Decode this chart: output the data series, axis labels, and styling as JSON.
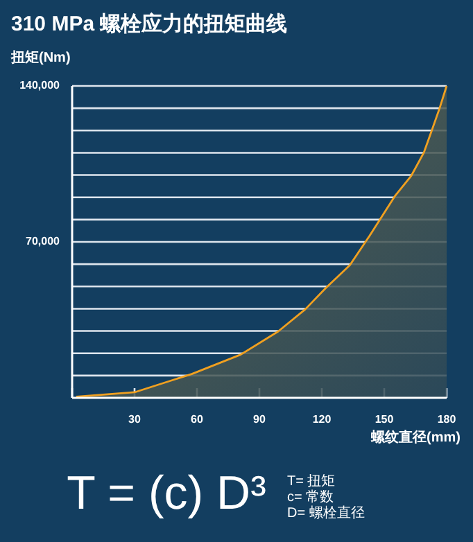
{
  "chart_data": {
    "type": "area",
    "title": "310 MPa 螺栓应力的扭矩曲线",
    "ylabel": "扭矩(Nm)",
    "xlabel": "螺纹直径(mm)",
    "series": [
      {
        "color": "#f0a020",
        "x": [
          2,
          30,
          57.5,
          81,
          99,
          112,
          122,
          133.5,
          143,
          155,
          163,
          169,
          173,
          176.5,
          180
        ],
        "values": [
          500,
          2500,
          10700,
          19400,
          29800,
          39700,
          49400,
          59600,
          72800,
          90400,
          99700,
          110000,
          120400,
          129700,
          140000
        ]
      }
    ],
    "xlim": [
      0,
      180
    ],
    "ylim": [
      0,
      140000
    ],
    "xticks": [
      {
        "value": 0,
        "label": null
      },
      30,
      60,
      90,
      120,
      150,
      180
    ],
    "yticks": [
      {
        "value": 10000,
        "label": null
      },
      {
        "value": 20000,
        "label": null
      },
      {
        "value": 30000,
        "label": null
      },
      {
        "value": 40000,
        "label": null
      },
      {
        "value": 50000,
        "label": null
      },
      {
        "value": 60000,
        "label": null
      },
      {
        "value": 70000,
        "label": "70,000"
      },
      {
        "value": 80000,
        "label": null
      },
      {
        "value": 90000,
        "label": null
      },
      {
        "value": 100000,
        "label": null
      },
      {
        "value": 110000,
        "label": null
      },
      {
        "value": 120000,
        "label": null
      },
      {
        "value": 130000,
        "label": null
      },
      {
        "value": 140000,
        "label": "140,000"
      }
    ],
    "grid": "y",
    "annotations": [
      "T = (c) D³",
      "T= 扭矩",
      "c= 常数",
      "D= 螺栓直径"
    ]
  }
}
